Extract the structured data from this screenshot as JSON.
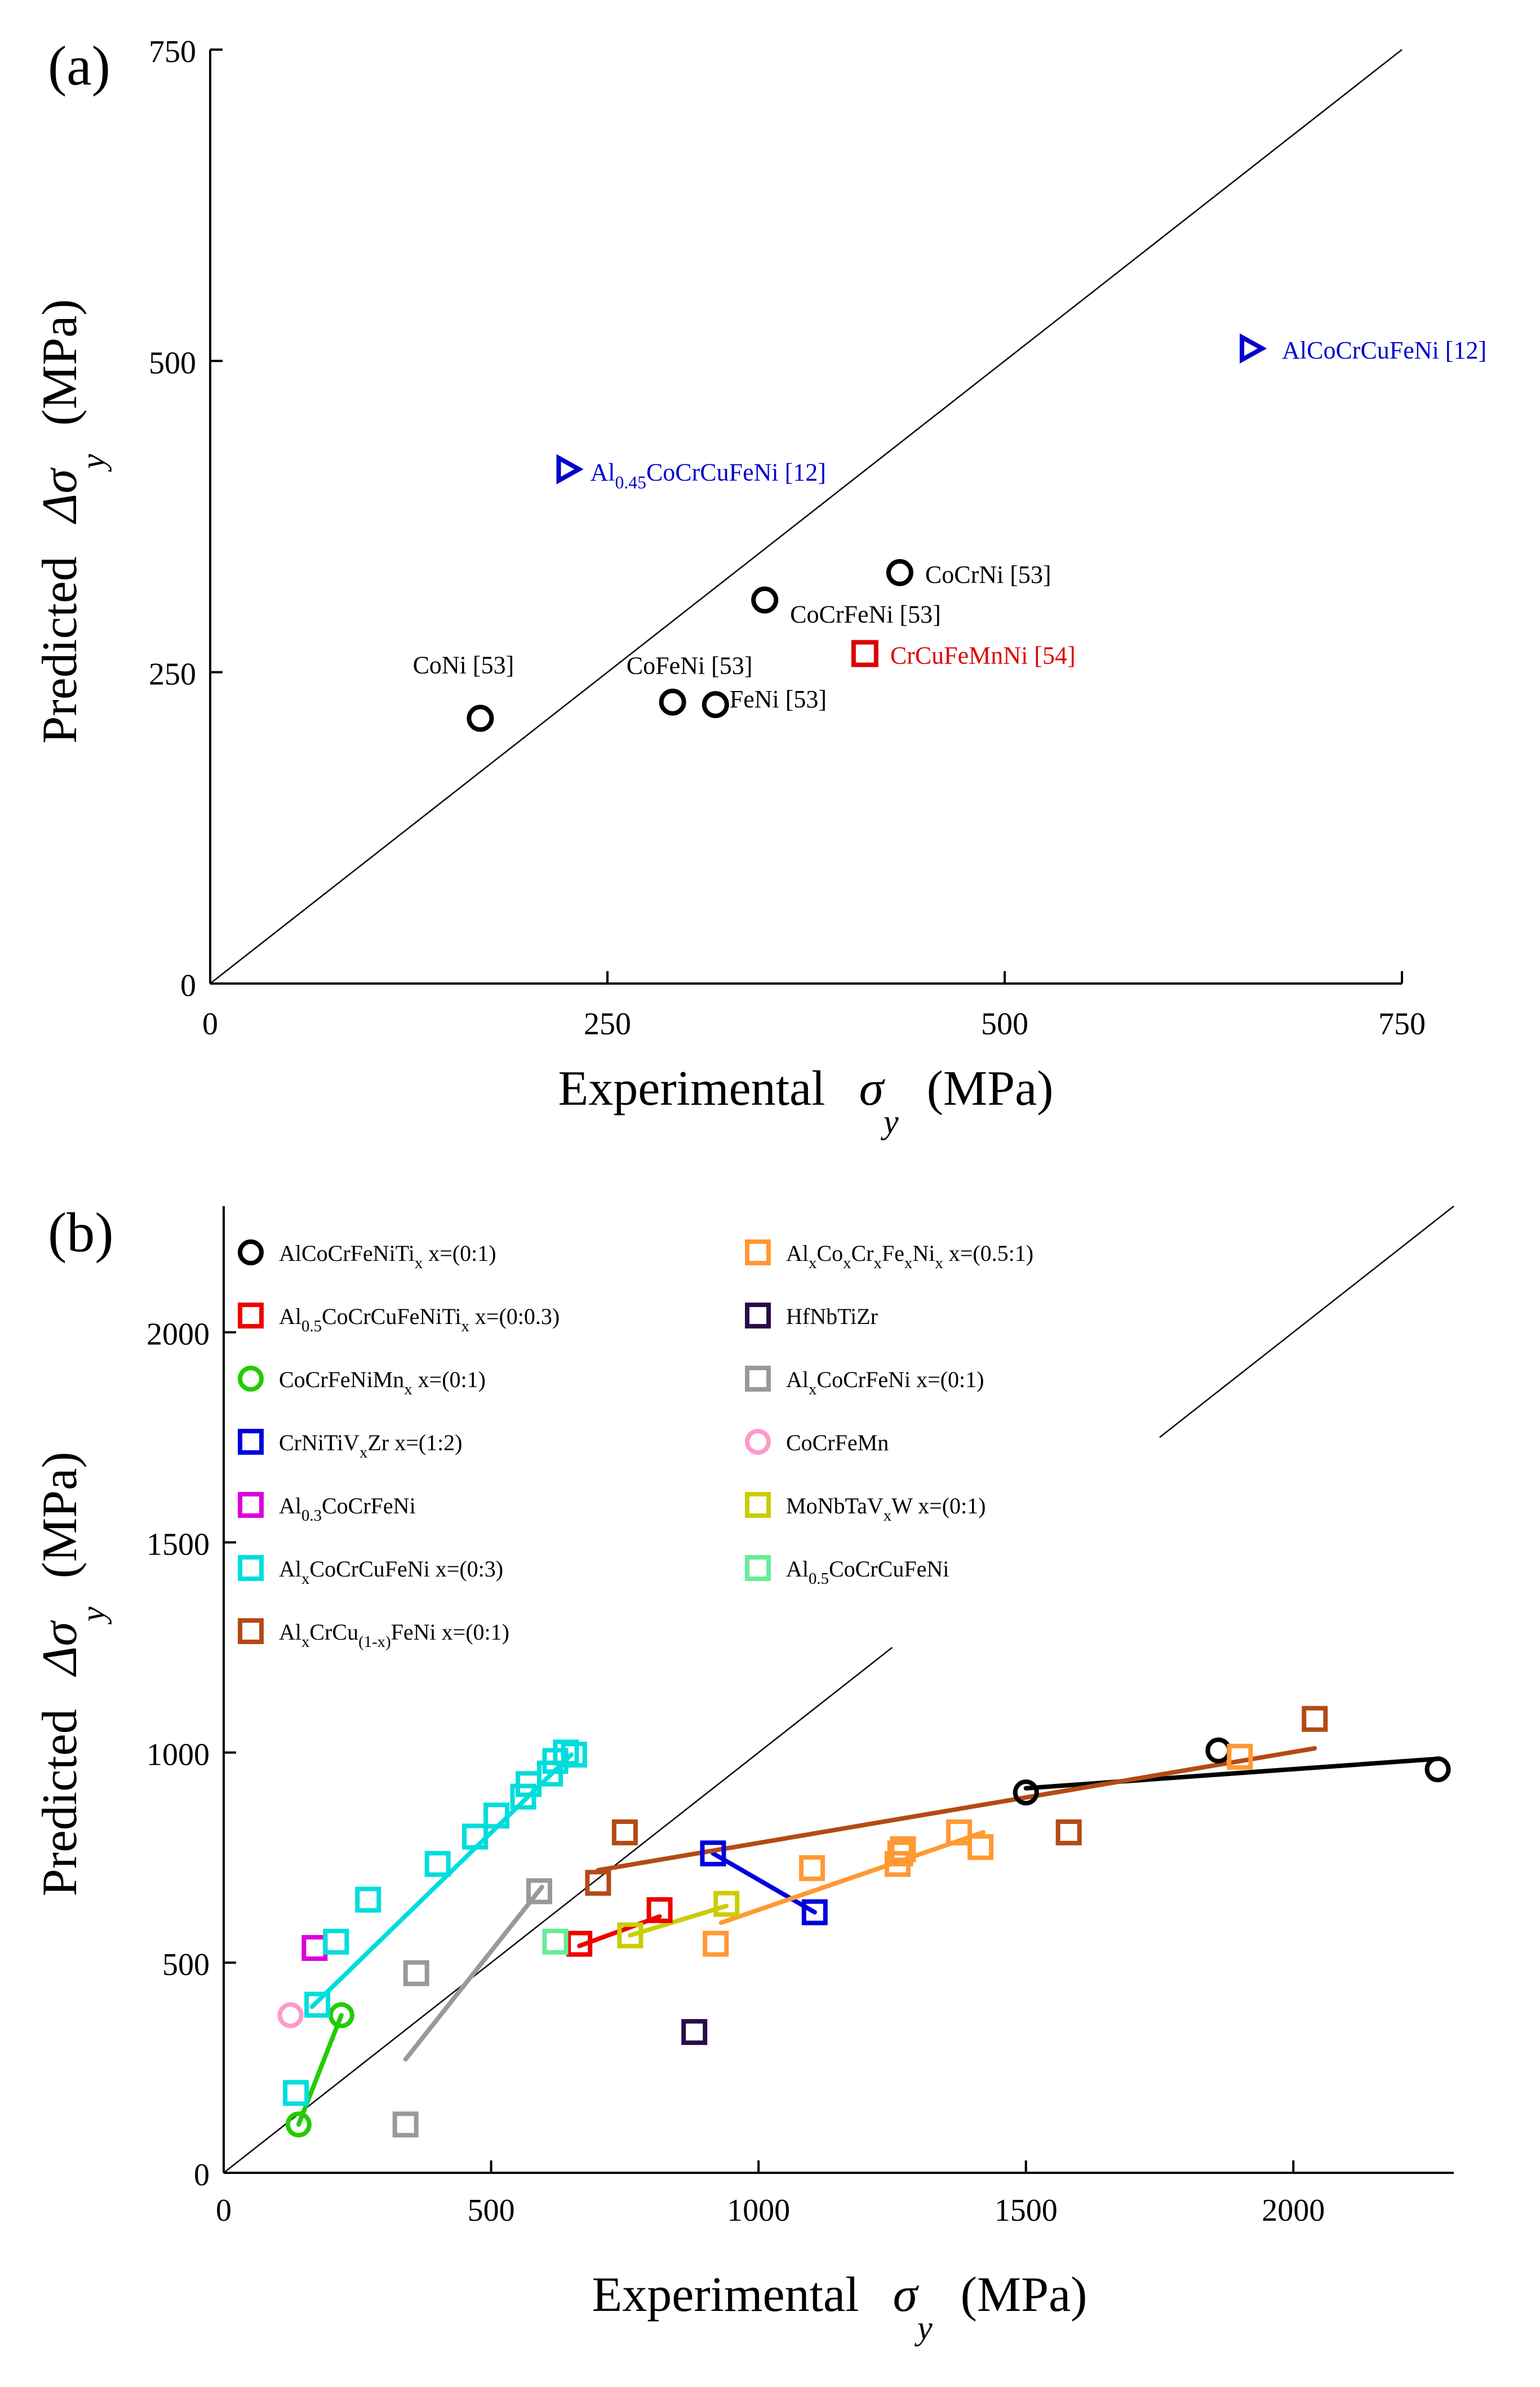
{
  "chart_data": [
    {
      "panel": "(a)",
      "type": "scatter",
      "xlabel": "Experimental σ_y (MPa)",
      "ylabel": "Predicted Δσ_y (MPa)",
      "xlim": [
        0,
        750
      ],
      "ylim": [
        0,
        750
      ],
      "xticks": [
        "0",
        "250",
        "500",
        "750"
      ],
      "yticks": [
        "0",
        "250",
        "500",
        "750"
      ],
      "diagonal": [
        [
          0,
          0
        ],
        [
          750,
          750
        ]
      ],
      "points": [
        {
          "label_main": "Al",
          "label_sub": "0.45",
          "label_rest": "CoCrCuFeNi [12]",
          "x": 225,
          "y": 413,
          "marker": "triangle-right",
          "color": "#0000cc"
        },
        {
          "label_main": "AlCoCrCuFeNi [12]",
          "x": 655,
          "y": 510,
          "marker": "triangle-right",
          "color": "#0000cc"
        },
        {
          "label_main": "CoCrNi [53]",
          "x": 434,
          "y": 330,
          "marker": "circle",
          "color": "#000000"
        },
        {
          "label_main": "CoCrFeNi [53]",
          "x": 349,
          "y": 308,
          "marker": "circle",
          "color": "#000000"
        },
        {
          "label_main": "CrCuFeMnNi [54]",
          "x": 412,
          "y": 265,
          "marker": "square",
          "color": "#dd0000"
        },
        {
          "label_main": "CoNi [53]",
          "x": 170,
          "y": 213,
          "marker": "circle",
          "color": "#000000"
        },
        {
          "label_main": "CoFeNi [53]",
          "x": 291,
          "y": 226,
          "marker": "circle",
          "color": "#000000"
        },
        {
          "label_main": "FeNi [53]",
          "x": 318,
          "y": 224,
          "marker": "circle",
          "color": "#000000"
        }
      ]
    },
    {
      "panel": "(b)",
      "type": "scatter",
      "xlabel": "Experimental σ_y (MPa)",
      "ylabel": "Predicted Δσ_y (MPa)",
      "xlim": [
        0,
        2300
      ],
      "ylim": [
        0,
        2300
      ],
      "xticks": [
        "0",
        "500",
        "1000",
        "1500",
        "2000"
      ],
      "yticks": [
        "0",
        "500",
        "1000",
        "1500",
        "2000"
      ],
      "diagonal_segments": [
        [
          [
            0,
            0
          ],
          [
            1250,
            1250
          ]
        ],
        [
          [
            1750,
            1750
          ],
          [
            2300,
            2300
          ]
        ]
      ],
      "series": [
        {
          "name_parts": [
            [
              "AlCoCrFeNiTi",
              ""
            ],
            [
              "x",
              "sub"
            ],
            [
              "  x=(0:1)",
              ""
            ]
          ],
          "color": "#000000",
          "marker": "circle",
          "points": [
            [
              1500,
              905
            ],
            [
              1860,
              1005
            ],
            [
              2270,
              960
            ]
          ],
          "fit": [
            [
              1500,
              915
            ],
            [
              2270,
              985
            ]
          ]
        },
        {
          "name_parts": [
            [
              "Al",
              ""
            ],
            [
              "0.5",
              "sub"
            ],
            [
              "CoCrCuFeNiTi",
              ""
            ],
            [
              "x",
              "sub"
            ],
            [
              "  x=(0:0.3)",
              ""
            ]
          ],
          "color": "#ee0000",
          "marker": "square",
          "points": [
            [
              665,
              545
            ],
            [
              815,
              625
            ]
          ],
          "fit": [
            [
              665,
              540
            ],
            [
              815,
              610
            ]
          ]
        },
        {
          "name_parts": [
            [
              "CoCrFeNiMn",
              ""
            ],
            [
              "x",
              "sub"
            ],
            [
              "  x=(0:1)",
              ""
            ]
          ],
          "color": "#22cc00",
          "marker": "circle",
          "points": [
            [
              140,
              115
            ],
            [
              220,
              375
            ]
          ],
          "fit": [
            [
              140,
              115
            ],
            [
              220,
              375
            ]
          ]
        },
        {
          "name_parts": [
            [
              "CrNiTiV",
              ""
            ],
            [
              "x",
              "sub"
            ],
            [
              "Zr  x=(1:2)",
              ""
            ]
          ],
          "color": "#0000dd",
          "marker": "square",
          "points": [
            [
              915,
              760
            ],
            [
              1105,
              620
            ]
          ],
          "fit": [
            [
              915,
              760
            ],
            [
              1105,
              620
            ]
          ]
        },
        {
          "name_parts": [
            [
              "Al",
              ""
            ],
            [
              "0.3",
              "sub"
            ],
            [
              "CoCrFeNi",
              ""
            ]
          ],
          "color": "#dd00dd",
          "marker": "square",
          "points": [
            [
              170,
              535
            ]
          ],
          "fit": null
        },
        {
          "name_parts": [
            [
              "Al",
              ""
            ],
            [
              "x",
              "sub"
            ],
            [
              "CoCrCuFeNi  x=(0:3)",
              ""
            ]
          ],
          "color": "#00dddd",
          "marker": "square",
          "points": [
            [
              135,
              190
            ],
            [
              175,
              400
            ],
            [
              210,
              550
            ],
            [
              270,
              650
            ],
            [
              400,
              735
            ],
            [
              470,
              800
            ],
            [
              510,
              850
            ],
            [
              560,
              895
            ],
            [
              570,
              925
            ],
            [
              610,
              950
            ],
            [
              620,
              980
            ],
            [
              640,
              1000
            ],
            [
              655,
              995
            ]
          ],
          "fit": [
            [
              165,
              395
            ],
            [
              650,
              995
            ]
          ]
        },
        {
          "name_parts": [
            [
              "Al",
              ""
            ],
            [
              "x",
              "sub"
            ],
            [
              "CrCu",
              ""
            ],
            [
              "(1-x)",
              "sub"
            ],
            [
              "FeNi  x=(0:1)",
              ""
            ]
          ],
          "color": "#b54a14",
          "marker": "square",
          "points": [
            [
              700,
              690
            ],
            [
              750,
              810
            ],
            [
              1580,
              810
            ],
            [
              2040,
              1080
            ]
          ],
          "fit": [
            [
              700,
              720
            ],
            [
              2040,
              1010
            ]
          ]
        },
        {
          "name_parts": [
            [
              "Al",
              ""
            ],
            [
              "x",
              "sub"
            ],
            [
              "Co",
              ""
            ],
            [
              "x",
              "sub"
            ],
            [
              "Cr",
              ""
            ],
            [
              "x",
              "sub"
            ],
            [
              "Fe",
              ""
            ],
            [
              "x",
              "sub"
            ],
            [
              "Ni",
              ""
            ],
            [
              "x",
              "sub"
            ],
            [
              "  x=(0.5:1)",
              ""
            ]
          ],
          "color": "#ff9933",
          "marker": "square",
          "points": [
            [
              920,
              545
            ],
            [
              1100,
              725
            ],
            [
              1260,
              735
            ],
            [
              1265,
              760
            ],
            [
              1270,
              770
            ],
            [
              1375,
              810
            ],
            [
              1415,
              775
            ],
            [
              1900,
              990
            ]
          ],
          "fit": [
            [
              930,
              595
            ],
            [
              1420,
              810
            ]
          ]
        },
        {
          "name_parts": [
            [
              "HfNbTiZr",
              ""
            ]
          ],
          "color": "#2a0a4a",
          "marker": "square",
          "points": [
            [
              880,
              335
            ]
          ],
          "fit": null
        },
        {
          "name_parts": [
            [
              "Al",
              ""
            ],
            [
              "x",
              "sub"
            ],
            [
              "CoCrFeNi  x=(0:1)",
              ""
            ]
          ],
          "color": "#999999",
          "marker": "square",
          "points": [
            [
              340,
              115
            ],
            [
              360,
              475
            ],
            [
              590,
              670
            ]
          ],
          "fit": [
            [
              340,
              270
            ],
            [
              595,
              680
            ]
          ]
        },
        {
          "name_parts": [
            [
              "CoCrFeMn",
              ""
            ]
          ],
          "color": "#ff99cc",
          "marker": "circle",
          "points": [
            [
              125,
              375
            ]
          ],
          "fit": null
        },
        {
          "name_parts": [
            [
              "MoNbTaV",
              ""
            ],
            [
              "x",
              "sub"
            ],
            [
              "W  x=(0:1)",
              ""
            ]
          ],
          "color": "#cccc00",
          "marker": "square",
          "points": [
            [
              760,
              565
            ],
            [
              940,
              640
            ]
          ],
          "fit": [
            [
              760,
              565
            ],
            [
              940,
              635
            ]
          ]
        },
        {
          "name_parts": [
            [
              "Al",
              ""
            ],
            [
              "0.5",
              "sub"
            ],
            [
              "CoCrCuFeNi",
              ""
            ]
          ],
          "color": "#66ee99",
          "marker": "square",
          "points": [
            [
              620,
              550
            ]
          ],
          "fit": null
        }
      ]
    }
  ]
}
